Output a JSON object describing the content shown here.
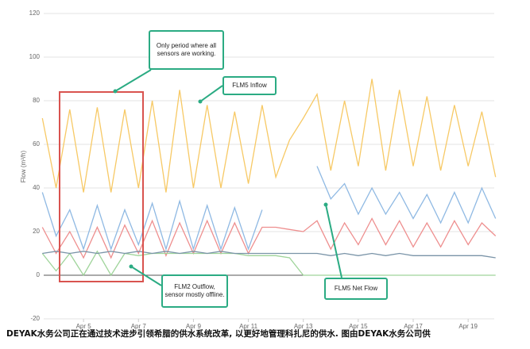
{
  "chart_data": {
    "type": "line",
    "y_label": "Flow (m³/h)",
    "x": [
      3.5,
      4,
      4.5,
      5,
      5.5,
      6,
      6.5,
      7,
      7.5,
      8,
      8.5,
      9,
      9.5,
      10,
      10.5,
      11,
      11.5,
      12,
      12.5,
      13,
      13.5,
      14,
      14.5,
      15,
      15.5,
      16,
      16.5,
      17,
      17.5,
      18,
      18.5,
      19,
      19.5,
      20
    ],
    "series": [
      {
        "color": "#f7c965",
        "values": [
          72,
          40,
          76,
          38,
          77,
          38,
          76,
          40,
          80,
          38,
          85,
          40,
          78,
          40,
          75,
          42,
          78,
          45,
          62,
          72,
          83,
          48,
          80,
          50,
          90,
          48,
          85,
          50,
          82,
          48,
          78,
          50,
          75,
          45
        ]
      },
      {
        "color": "#8fb9e3",
        "values": [
          38,
          18,
          30,
          12,
          32,
          12,
          30,
          14,
          33,
          12,
          34,
          12,
          32,
          12,
          31,
          12,
          30,
          null,
          null,
          null,
          50,
          35,
          42,
          28,
          40,
          28,
          38,
          26,
          37,
          24,
          38,
          24,
          40,
          26
        ]
      },
      {
        "color": "#ee8e8e",
        "values": [
          22,
          10,
          20,
          8,
          22,
          8,
          23,
          10,
          25,
          9,
          24,
          10,
          25,
          10,
          24,
          10,
          22,
          22,
          21,
          20,
          25,
          12,
          24,
          14,
          26,
          14,
          25,
          13,
          24,
          13,
          25,
          14,
          24,
          18
        ]
      },
      {
        "color": "#9fd49a",
        "values": [
          10,
          2,
          10,
          0,
          11,
          0,
          10,
          9,
          10,
          10,
          10,
          10,
          10,
          10,
          10,
          9,
          9,
          9,
          8,
          0,
          0,
          0,
          0,
          0,
          0,
          0,
          0,
          0,
          0,
          0,
          0,
          0,
          0,
          0
        ]
      },
      {
        "color": "#7a94a8",
        "values": [
          10,
          11,
          10,
          11,
          10,
          11,
          10,
          11,
          10,
          11,
          10,
          11,
          10,
          11,
          10,
          10,
          10,
          10,
          10,
          10,
          10,
          9,
          10,
          9,
          10,
          9,
          10,
          9,
          9,
          9,
          9,
          9,
          9,
          8
        ]
      }
    ],
    "xlim": [
      3.55,
      19.95
    ],
    "ylim": [
      -20,
      120
    ],
    "xticks": [
      {
        "value": 5,
        "label": "Apr 5"
      },
      {
        "value": 7,
        "label": "Apr 7"
      },
      {
        "value": 9,
        "label": "Apr 9"
      },
      {
        "value": 11,
        "label": "Apr 11"
      },
      {
        "value": 13,
        "label": "Apr 13"
      },
      {
        "value": 15,
        "label": "Apr 15"
      },
      {
        "value": 17,
        "label": "Apr 17"
      },
      {
        "value": 19,
        "label": "Apr 19"
      }
    ],
    "yticks": [
      -20,
      0,
      20,
      40,
      60,
      80,
      100,
      120
    ],
    "grid": true,
    "annotations": [
      "Only period where all sensors are working.",
      "FLM5 Inflow",
      "FLM2 Outflow, sensor mostly offline.",
      "FLM5 Net Flow"
    ]
  },
  "caption": "DEYAK水务公司正在通过技术进步引领希腊的供水系统改革, 以更好地管理科扎尼的供水. 图由DEYAK水务公司供"
}
